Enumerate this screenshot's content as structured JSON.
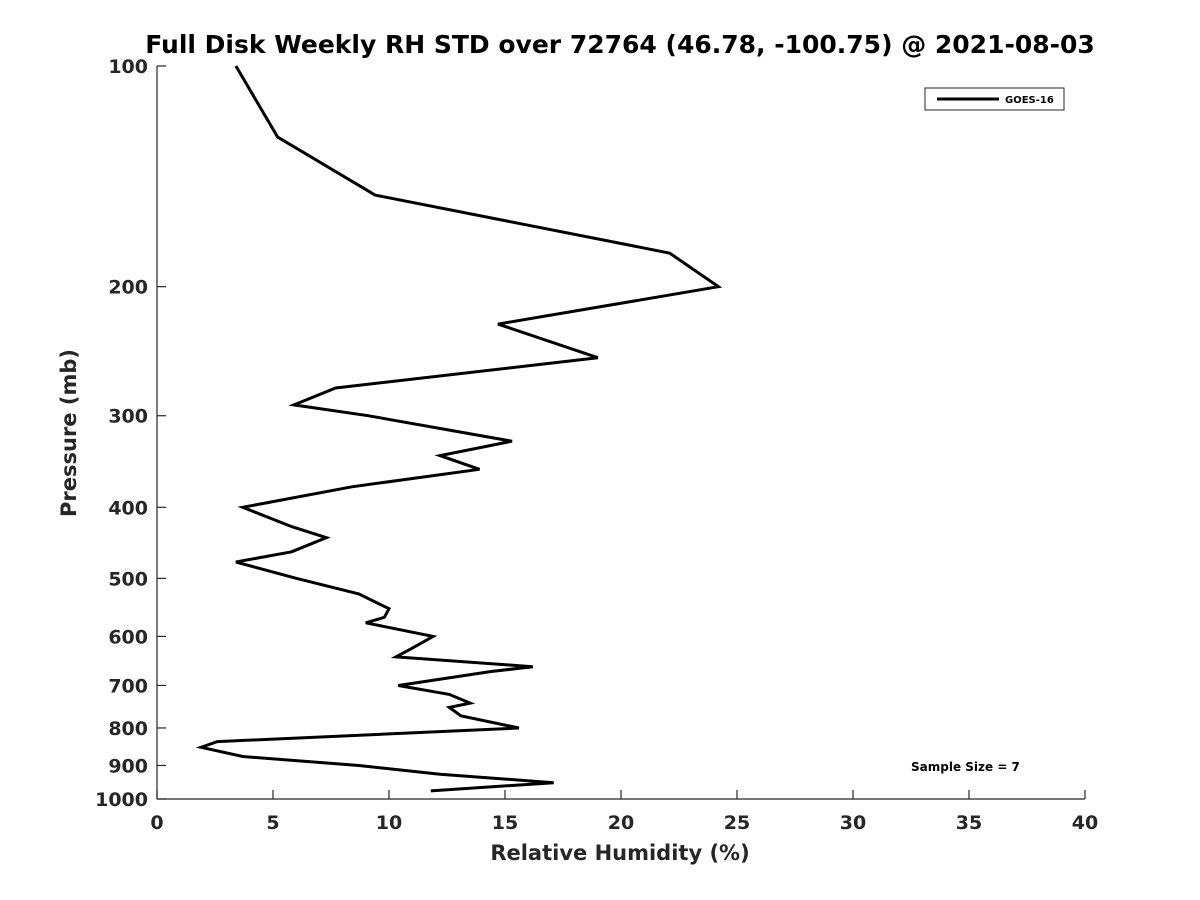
{
  "chart_data": {
    "type": "line",
    "title": "Full Disk Weekly RH STD over 72764 (46.78, -100.75) @ 2021-08-03",
    "xlabel": "Relative Humidity (%)",
    "ylabel": "Pressure (mb)",
    "xlim": [
      0,
      40
    ],
    "ylim": [
      100,
      1000
    ],
    "y_scale": "log",
    "y_reversed": true,
    "xticks": [
      "0",
      "5",
      "10",
      "15",
      "20",
      "25",
      "30",
      "35",
      "40"
    ],
    "xtick_values": [
      0,
      5,
      10,
      15,
      20,
      25,
      30,
      35,
      40
    ],
    "yticks": [
      "100",
      "200",
      "300",
      "400",
      "500",
      "600",
      "700",
      "800",
      "900",
      "1000"
    ],
    "ytick_values": [
      100,
      200,
      300,
      400,
      500,
      600,
      700,
      800,
      900,
      1000
    ],
    "grid": false,
    "legend_position": "top-right",
    "annotation": "Sample Size = 7",
    "series": [
      {
        "name": "GOES-16",
        "color": "#000000",
        "points": [
          [
            3.4,
            100
          ],
          [
            5.2,
            125
          ],
          [
            9.4,
            150
          ],
          [
            22.1,
            180
          ],
          [
            24.2,
            200
          ],
          [
            14.7,
            225
          ],
          [
            19.0,
            250
          ],
          [
            7.7,
            275
          ],
          [
            5.9,
            290
          ],
          [
            9.1,
            300
          ],
          [
            15.3,
            325
          ],
          [
            12.2,
            340
          ],
          [
            13.9,
            355
          ],
          [
            8.4,
            375
          ],
          [
            3.7,
            400
          ],
          [
            5.8,
            425
          ],
          [
            7.3,
            440
          ],
          [
            5.8,
            460
          ],
          [
            3.4,
            475
          ],
          [
            6.0,
            500
          ],
          [
            8.7,
            525
          ],
          [
            10.0,
            550
          ],
          [
            9.8,
            565
          ],
          [
            9.0,
            575
          ],
          [
            11.9,
            600
          ],
          [
            10.9,
            625
          ],
          [
            10.3,
            640
          ],
          [
            16.2,
            660
          ],
          [
            14.4,
            670
          ],
          [
            10.4,
            700
          ],
          [
            12.6,
            720
          ],
          [
            13.5,
            740
          ],
          [
            12.6,
            750
          ],
          [
            13.1,
            770
          ],
          [
            15.6,
            800
          ],
          [
            10.0,
            815
          ],
          [
            2.6,
            835
          ],
          [
            1.9,
            850
          ],
          [
            3.7,
            875
          ],
          [
            8.7,
            900
          ],
          [
            12.2,
            925
          ],
          [
            17.1,
            950
          ],
          [
            11.8,
            975
          ]
        ]
      }
    ]
  }
}
